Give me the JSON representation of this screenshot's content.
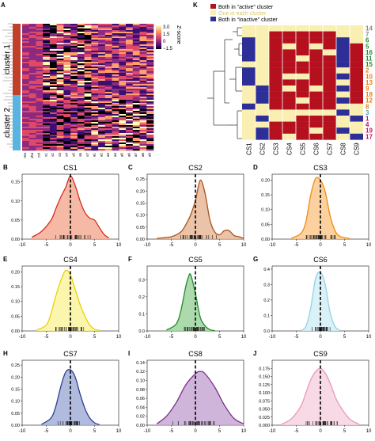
{
  "panels": {
    "A": "A",
    "K": "K",
    "B": "B",
    "C": "C",
    "D": "D",
    "E": "E",
    "F": "F",
    "G": "G",
    "H": "H",
    "I": "I",
    "J": "J"
  },
  "heatmap": {
    "cluster1_label": "cluster 1",
    "cluster2_label": "cluster 2",
    "column_labels": [
      "area",
      "alpha",
      "col",
      "s1",
      "s2",
      "s3",
      "s4",
      "s5",
      "s6",
      "s7",
      "a1",
      "a2",
      "a3",
      "a4",
      "a5",
      "a6",
      "a7",
      "a8",
      "a9"
    ],
    "colorbar": {
      "title": "Z-score",
      "ticks": [
        "3.0",
        "1.5",
        "0",
        "−1.5"
      ]
    }
  },
  "legend_k": {
    "items": [
      {
        "text": "Both in “active” cluster",
        "color": "#b5101e"
      },
      {
        "text": "One in each cluster",
        "color": "#f9efb2"
      },
      {
        "text": "Both in “inactive” cluster",
        "color": "#2d2e96"
      }
    ]
  },
  "matrix_k": {
    "columns": [
      "CS1",
      "CS2",
      "CS3",
      "CS4",
      "CS5",
      "CS6",
      "CS7",
      "CS8",
      "CS9"
    ],
    "rows": [
      {
        "label": "14",
        "color": "#8a8a8a"
      },
      {
        "label": "7",
        "color": "#8a8a8a"
      },
      {
        "label": "6",
        "color": "#1f8a2c"
      },
      {
        "label": "5",
        "color": "#1f8a2c"
      },
      {
        "label": "16",
        "color": "#1f8a2c"
      },
      {
        "label": "11",
        "color": "#1f8a2c"
      },
      {
        "label": "15",
        "color": "#1f8a2c"
      },
      {
        "label": "2",
        "color": "#f07c12"
      },
      {
        "label": "10",
        "color": "#f07c12"
      },
      {
        "label": "13",
        "color": "#f07c12"
      },
      {
        "label": "9",
        "color": "#f07c12"
      },
      {
        "label": "18",
        "color": "#f07c12"
      },
      {
        "label": "12",
        "color": "#f07c12"
      },
      {
        "label": "8",
        "color": "#f07c12"
      },
      {
        "label": "3",
        "color": "#3ca8d8"
      },
      {
        "label": "1",
        "color": "#d0106a"
      },
      {
        "label": "4",
        "color": "#d0106a"
      },
      {
        "label": "19",
        "color": "#d0106a"
      },
      {
        "label": "17",
        "color": "#d0106a"
      }
    ],
    "grid": [
      "YYYYYYYYY",
      "YYRRRRRYY",
      "BYRRRRRBY",
      "BYRYRYRBR",
      "BYRRRRYBR",
      "BYRRYRRBR",
      "YYRRRRRBR",
      "BYRRRRRYR",
      "BYRYYRRBR",
      "BYRRRRRYR",
      "YBRYRYRBR",
      "YBRRRRRYR",
      "YBRRYRRBR",
      "BYRRRRRYY",
      "YYYYYYYBY",
      "YBYYRRRYB",
      "YYRRRRRYY",
      "YBRRRYRBY",
      "YBRYRRRYB"
    ]
  },
  "chart_data": [
    {
      "type": "area",
      "title": "CS1",
      "color": "#d62d20",
      "fill": "#f4ad96",
      "xlim": [
        -10,
        10
      ],
      "ylim": [
        0,
        0.17
      ],
      "xticks": [
        "-10",
        "-5",
        "0",
        "5",
        "10"
      ],
      "yticks": [
        "0.00",
        "0.05",
        "0.10",
        "0.15"
      ],
      "x": [
        -8,
        -6,
        -4,
        -3,
        -2,
        -1,
        0,
        1,
        2,
        3,
        4,
        5,
        6,
        7,
        8
      ],
      "y": [
        0.005,
        0.02,
        0.05,
        0.08,
        0.11,
        0.135,
        0.165,
        0.14,
        0.1,
        0.07,
        0.055,
        0.05,
        0.03,
        0.012,
        0.003
      ]
    },
    {
      "type": "area",
      "title": "CS2",
      "color": "#a8531a",
      "fill": "#e8b89a",
      "xlim": [
        -10,
        10
      ],
      "ylim": [
        0,
        0.27
      ],
      "xticks": [
        "-10",
        "-5",
        "0",
        "5",
        "10"
      ],
      "yticks": [
        "0.00",
        "0.05",
        "0.10",
        "0.15",
        "0.20",
        "0.25"
      ],
      "x": [
        -8,
        -5,
        -3,
        -2,
        -1,
        0,
        1,
        2,
        3,
        4,
        5,
        6,
        7,
        8,
        9,
        10
      ],
      "y": [
        0.003,
        0.01,
        0.03,
        0.06,
        0.1,
        0.16,
        0.245,
        0.19,
        0.08,
        0.03,
        0.018,
        0.035,
        0.035,
        0.015,
        0.01,
        0.003
      ]
    },
    {
      "type": "area",
      "title": "CS3",
      "color": "#f08a10",
      "fill": "#fbc98e",
      "xlim": [
        -10,
        10
      ],
      "ylim": [
        0,
        0.22
      ],
      "xticks": [
        "-10",
        "-5",
        "0",
        "5",
        "10"
      ],
      "yticks": [
        "0.00",
        "0.05",
        "0.10",
        "0.15",
        "0.20"
      ],
      "x": [
        -6,
        -4,
        -3,
        -2,
        -1,
        0,
        1,
        2,
        3,
        4,
        6
      ],
      "y": [
        0.003,
        0.02,
        0.06,
        0.15,
        0.205,
        0.2,
        0.16,
        0.08,
        0.03,
        0.01,
        0.002
      ]
    },
    {
      "type": "area",
      "title": "CS4",
      "color": "#e5d400",
      "fill": "#fbf3a0",
      "xlim": [
        -10,
        10
      ],
      "ylim": [
        0,
        0.22
      ],
      "xticks": [
        "-10",
        "-5",
        "0",
        "5",
        "10"
      ],
      "yticks": [
        "0.00",
        "0.05",
        "0.10",
        "0.15",
        "0.20"
      ],
      "x": [
        -7,
        -5,
        -4,
        -3,
        -2,
        -1,
        0,
        1,
        2,
        3,
        4,
        5,
        6
      ],
      "y": [
        0.003,
        0.02,
        0.06,
        0.12,
        0.17,
        0.205,
        0.19,
        0.14,
        0.09,
        0.05,
        0.02,
        0.006,
        0.002
      ]
    },
    {
      "type": "area",
      "title": "CS5",
      "color": "#1f8a2c",
      "fill": "#9fd49f",
      "xlim": [
        -10,
        10
      ],
      "ylim": [
        0,
        0.38
      ],
      "xticks": [
        "-10",
        "-5",
        "0",
        "5",
        "10"
      ],
      "yticks": [
        "0.0",
        "0.1",
        "0.2",
        "0.3"
      ],
      "x": [
        -6,
        -4,
        -3,
        -2,
        -1.5,
        -1,
        0,
        1,
        2,
        3,
        4
      ],
      "y": [
        0.005,
        0.04,
        0.12,
        0.26,
        0.31,
        0.33,
        0.22,
        0.08,
        0.03,
        0.008,
        0.002
      ]
    },
    {
      "type": "area",
      "title": "CS6",
      "color": "#8fd3e8",
      "fill": "#d5eef7",
      "xlim": [
        -10,
        10
      ],
      "ylim": [
        0,
        0.42
      ],
      "xticks": [
        "-10",
        "-5",
        "0",
        "5",
        "10"
      ],
      "yticks": [
        "0.0",
        "0.1",
        "0.2",
        "0.3",
        "0.4"
      ],
      "x": [
        -4,
        -3,
        -2,
        -1,
        0,
        1,
        2,
        3,
        4
      ],
      "y": [
        0.004,
        0.03,
        0.15,
        0.34,
        0.38,
        0.3,
        0.12,
        0.03,
        0.004
      ]
    },
    {
      "type": "area",
      "title": "CS7",
      "color": "#2f3f8e",
      "fill": "#a3afd8",
      "xlim": [
        -10,
        10
      ],
      "ylim": [
        0,
        0.27
      ],
      "xticks": [
        "-10",
        "-5",
        "0",
        "5",
        "10"
      ],
      "yticks": [
        "0.00",
        "0.05",
        "0.10",
        "0.15",
        "0.20",
        "0.25"
      ],
      "x": [
        -6,
        -4,
        -3,
        -2,
        -1,
        0,
        1,
        2,
        3,
        4,
        5,
        6
      ],
      "y": [
        0.003,
        0.03,
        0.08,
        0.16,
        0.22,
        0.23,
        0.2,
        0.13,
        0.07,
        0.03,
        0.01,
        0.002
      ]
    },
    {
      "type": "area",
      "title": "CS8",
      "color": "#7b2e8a",
      "fill": "#c8a8d4",
      "xlim": [
        -10,
        10
      ],
      "ylim": [
        0,
        0.145
      ],
      "xticks": [
        "-10",
        "-5",
        "0",
        "5",
        "10"
      ],
      "yticks": [
        "0.00",
        "0.02",
        "0.04",
        "0.06",
        "0.08",
        "0.10",
        "0.12",
        "0.14"
      ],
      "x": [
        -8,
        -6,
        -4,
        -2,
        0,
        1,
        2,
        4,
        6,
        8,
        10
      ],
      "y": [
        0.003,
        0.02,
        0.05,
        0.09,
        0.115,
        0.12,
        0.115,
        0.085,
        0.045,
        0.015,
        0.003
      ]
    },
    {
      "type": "area",
      "title": "CS9",
      "color": "#e898b8",
      "fill": "#f7d4e2",
      "xlim": [
        -10,
        10
      ],
      "ylim": [
        0,
        0.2
      ],
      "xticks": [
        "-10",
        "-5",
        "0",
        "5",
        "10"
      ],
      "yticks": [
        "0.000",
        "0.025",
        "0.050",
        "0.075",
        "0.100",
        "0.125",
        "0.150",
        "0.175"
      ],
      "x": [
        -8,
        -6,
        -4,
        -3,
        -2,
        -1,
        0,
        1,
        2,
        3,
        4,
        6,
        8
      ],
      "y": [
        0.003,
        0.02,
        0.06,
        0.1,
        0.14,
        0.165,
        0.175,
        0.16,
        0.13,
        0.09,
        0.06,
        0.02,
        0.003
      ]
    }
  ]
}
